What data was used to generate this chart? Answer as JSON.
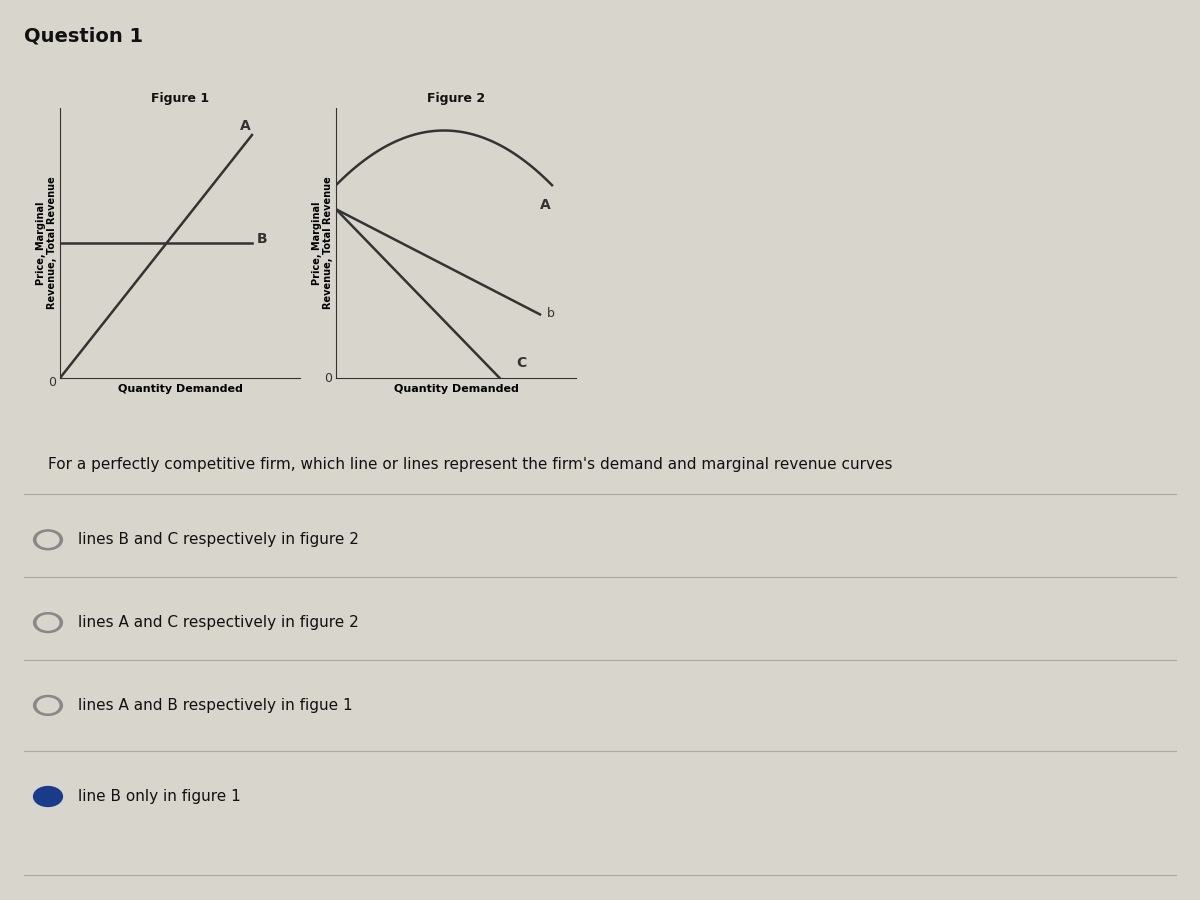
{
  "bg_color": "#d8d5cc",
  "title_text": "Question 1",
  "question_text": "For a perfectly competitive firm, which line or lines represent the firm's demand and marginal revenue curves",
  "options": [
    {
      "text": "lines B and C respectively in figure 2",
      "selected": false
    },
    {
      "text": "lines A and C respectively in figure 2",
      "selected": false
    },
    {
      "text": "lines A and B respectively in figue 1",
      "selected": false
    },
    {
      "text": "line B only in figure 1",
      "selected": true
    }
  ],
  "fig1_ylabel": "Price, Marginal\nRevenue, Total Revenue",
  "fig1_xlabel": "Quantity Demanded",
  "fig1_title": "Figure 1",
  "fig2_ylabel": "Price, Marginal\nRevenue, Total Revenue",
  "fig2_xlabel": "Quantity Demanded",
  "fig2_title": "Figure 2",
  "radio_color_selected": "#1a3a8a",
  "radio_color_unselected": "#888888",
  "line_color": "#333333",
  "label_color": "#111111"
}
